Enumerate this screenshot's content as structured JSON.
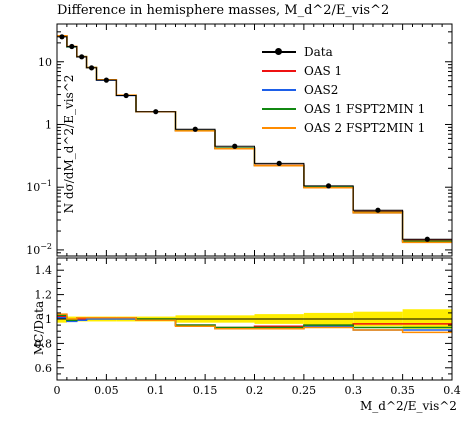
{
  "title": "Difference in hemisphere masses, M_d^2/E_vis^2",
  "chart_data": {
    "type": "line",
    "xlabel": "M_d^2/E_vis^2",
    "ylabel": "N dσ/dM_d^2/E_vis^2",
    "ratio_ylabel": "MC/Data",
    "xlim": [
      0,
      0.4
    ],
    "ylim": [
      0.008,
      40
    ],
    "yscale": "log",
    "ratio_ylim": [
      0.5,
      1.5
    ],
    "x_ticks": [
      "0",
      "0.05",
      "0.1",
      "0.15",
      "0.2",
      "0.25",
      "0.3",
      "0.35",
      "0.4"
    ],
    "y_ticks": [
      "10",
      "1",
      "10^-1",
      "10^-2"
    ],
    "ratio_ticks": [
      "1.4",
      "1.2",
      "1",
      "0.8",
      "0.6"
    ],
    "legend_position": "top-right",
    "bin_edges": [
      0,
      0.01,
      0.02,
      0.03,
      0.04,
      0.06,
      0.08,
      0.12,
      0.16,
      0.2,
      0.25,
      0.3,
      0.35,
      0.4
    ],
    "series": [
      {
        "name": "Data",
        "color": "#000000",
        "values": [
          25,
          17.5,
          12,
          8,
          5.1,
          2.9,
          1.6,
          0.84,
          0.45,
          0.24,
          0.105,
          0.043,
          0.0148
        ]
      },
      {
        "name": "OAS 1",
        "color": "#ee1111",
        "values": [
          25.5,
          17.3,
          12.0,
          8.05,
          5.15,
          2.93,
          1.6,
          0.8,
          0.42,
          0.225,
          0.1,
          0.041,
          0.0142
        ]
      },
      {
        "name": "OAS2",
        "color": "#1d5fe8",
        "values": [
          25.3,
          17.2,
          11.9,
          8.0,
          5.1,
          2.9,
          1.59,
          0.8,
          0.41,
          0.22,
          0.099,
          0.039,
          0.0135
        ]
      },
      {
        "name": "OAS 1 FSPT2MIN 1",
        "color": "#118811",
        "values": [
          25.8,
          17.4,
          12.1,
          8.1,
          5.15,
          2.93,
          1.6,
          0.8,
          0.42,
          0.222,
          0.1,
          0.04,
          0.0138
        ]
      },
      {
        "name": "OAS 2 FSPT2MIN 1",
        "color": "#ff8c00",
        "values": [
          26.0,
          17.6,
          12.1,
          8.1,
          5.16,
          2.94,
          1.59,
          0.79,
          0.41,
          0.22,
          0.098,
          0.039,
          0.0132
        ]
      }
    ],
    "ratio_series": [
      {
        "name": "OAS 1",
        "color": "#ee1111",
        "values": [
          1.02,
          0.99,
          1.0,
          1.01,
          1.01,
          1.01,
          1.0,
          0.95,
          0.93,
          0.94,
          0.95,
          0.96,
          0.96
        ]
      },
      {
        "name": "OAS2",
        "color": "#1d5fe8",
        "values": [
          1.01,
          0.98,
          0.99,
          1.0,
          1.0,
          1.0,
          0.99,
          0.95,
          0.92,
          0.92,
          0.94,
          0.91,
          0.91
        ]
      },
      {
        "name": "OAS 1 FSPT2MIN 1",
        "color": "#118811",
        "values": [
          1.03,
          0.99,
          1.01,
          1.01,
          1.01,
          1.01,
          1.0,
          0.95,
          0.93,
          0.93,
          0.95,
          0.93,
          0.93
        ]
      },
      {
        "name": "OAS 2 FSPT2MIN 1",
        "color": "#ff8c00",
        "values": [
          1.04,
          1.0,
          1.01,
          1.01,
          1.01,
          1.01,
          0.99,
          0.94,
          0.92,
          0.92,
          0.93,
          0.91,
          0.89
        ]
      }
    ],
    "ratio_band": {
      "color": "#ffee00",
      "lower": [
        0.97,
        0.98,
        0.98,
        0.98,
        0.98,
        0.98,
        0.98,
        0.97,
        0.97,
        0.96,
        0.95,
        0.94,
        0.92
      ],
      "upper": [
        1.03,
        1.02,
        1.02,
        1.02,
        1.02,
        1.02,
        1.02,
        1.03,
        1.03,
        1.04,
        1.05,
        1.06,
        1.08
      ]
    }
  }
}
